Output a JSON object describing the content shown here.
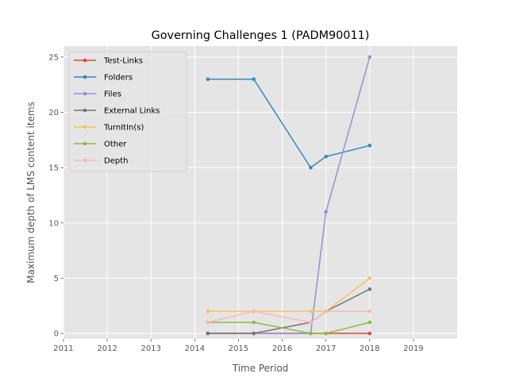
{
  "chart_data": {
    "type": "line",
    "title": "Governing Challenges 1 (PADM90011)",
    "xlabel": "Time Period",
    "ylabel": "Maximum depth of LMS content items",
    "xlim": [
      2011.0,
      2020.0
    ],
    "ylim": [
      -0.5,
      26.0
    ],
    "xticks": [
      2011,
      2012,
      2013,
      2014,
      2015,
      2016,
      2017,
      2018,
      2019
    ],
    "yticks": [
      0,
      5,
      10,
      15,
      20,
      25
    ],
    "grid": true,
    "legend_position": "top-left",
    "x": [
      2014.3,
      2015.35,
      2016.65,
      2017.0,
      2018.0
    ],
    "series": [
      {
        "name": "Test-Links",
        "color": "#E24A33",
        "values": [
          0,
          0,
          0,
          0,
          0
        ]
      },
      {
        "name": "Folders",
        "color": "#348ABD",
        "values": [
          23,
          23,
          15,
          16,
          17
        ]
      },
      {
        "name": "Files",
        "color": "#988ED5",
        "values": [
          0,
          0,
          0,
          11,
          25
        ]
      },
      {
        "name": "External Links",
        "color": "#777777",
        "values": [
          0,
          0,
          1,
          2,
          4
        ]
      },
      {
        "name": "TurnItIn(s)",
        "color": "#FBC15E",
        "values": [
          2,
          2,
          2,
          2,
          5
        ]
      },
      {
        "name": "Other",
        "color": "#8EBA42",
        "values": [
          1,
          1,
          0,
          0,
          1
        ]
      },
      {
        "name": "Depth",
        "color": "#FFB5B8",
        "values": [
          1,
          2,
          1,
          2,
          2
        ]
      }
    ]
  }
}
